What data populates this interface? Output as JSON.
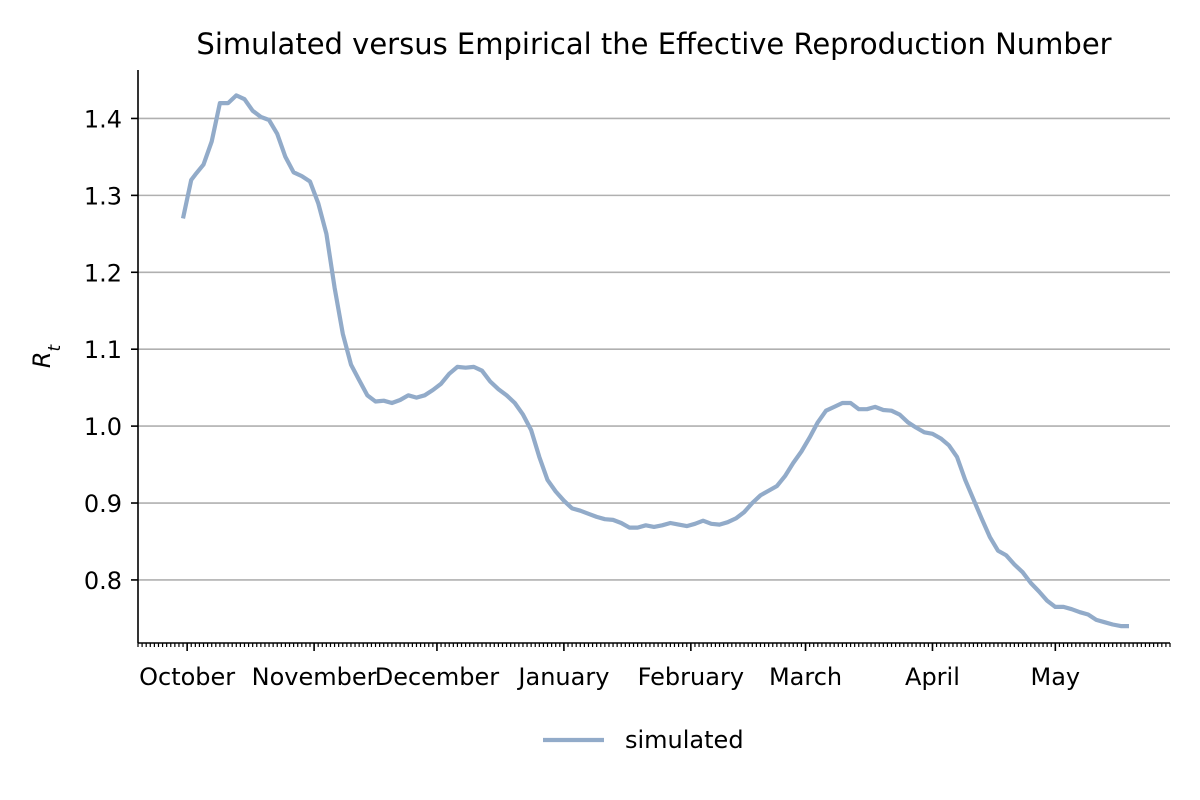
{
  "chart_data": {
    "type": "line",
    "title": "Simulated versus Empirical the Effective Reproduction Number",
    "xlabel": "",
    "ylabel": "R_t",
    "xlim": [
      "2020-09-19",
      "2021-05-29"
    ],
    "ylim": [
      0.718,
      1.463
    ],
    "yticks": [
      0.8,
      0.9,
      1.0,
      1.1,
      1.2,
      1.3,
      1.4
    ],
    "ytick_labels": [
      "0.8",
      "0.9",
      "1.0",
      "1.1",
      "1.2",
      "1.3",
      "1.4"
    ],
    "xticks": [
      {
        "date": "2020-10-01",
        "label": "October"
      },
      {
        "date": "2020-11-01",
        "label": "November"
      },
      {
        "date": "2020-12-01",
        "label": "December"
      },
      {
        "date": "2021-01-01",
        "label": "January"
      },
      {
        "date": "2021-02-01",
        "label": "February"
      },
      {
        "date": "2021-03-01",
        "label": "March"
      },
      {
        "date": "2021-04-01",
        "label": "April"
      },
      {
        "date": "2021-05-01",
        "label": "May"
      }
    ],
    "grid": "y",
    "legend_position": "bottom-center",
    "series": [
      {
        "name": "simulated",
        "color": "#92abc9",
        "x": [
          "2020-09-30",
          "2020-10-01",
          "2020-10-02",
          "2020-10-03",
          "2020-10-05",
          "2020-10-07",
          "2020-10-09",
          "2020-10-11",
          "2020-10-13",
          "2020-10-15",
          "2020-10-17",
          "2020-10-19",
          "2020-10-21",
          "2020-10-23",
          "2020-10-25",
          "2020-10-27",
          "2020-10-29",
          "2020-10-31",
          "2020-11-02",
          "2020-11-04",
          "2020-11-06",
          "2020-11-08",
          "2020-11-10",
          "2020-11-12",
          "2020-11-14",
          "2020-11-16",
          "2020-11-18",
          "2020-11-20",
          "2020-11-22",
          "2020-11-24",
          "2020-11-26",
          "2020-11-28",
          "2020-11-30",
          "2020-12-02",
          "2020-12-04",
          "2020-12-06",
          "2020-12-08",
          "2020-12-10",
          "2020-12-12",
          "2020-12-14",
          "2020-12-16",
          "2020-12-18",
          "2020-12-20",
          "2020-12-22",
          "2020-12-24",
          "2020-12-26",
          "2020-12-28",
          "2020-12-30",
          "2021-01-01",
          "2021-01-03",
          "2021-01-05",
          "2021-01-07",
          "2021-01-09",
          "2021-01-11",
          "2021-01-13",
          "2021-01-15",
          "2021-01-17",
          "2021-01-19",
          "2021-01-21",
          "2021-01-23",
          "2021-01-25",
          "2021-01-27",
          "2021-01-29",
          "2021-01-31",
          "2021-02-02",
          "2021-02-04",
          "2021-02-06",
          "2021-02-08",
          "2021-02-10",
          "2021-02-12",
          "2021-02-14",
          "2021-02-16",
          "2021-02-18",
          "2021-02-20",
          "2021-02-22",
          "2021-02-24",
          "2021-02-26",
          "2021-02-28",
          "2021-03-02",
          "2021-03-04",
          "2021-03-06",
          "2021-03-08",
          "2021-03-10",
          "2021-03-12",
          "2021-03-14",
          "2021-03-16",
          "2021-03-18",
          "2021-03-20",
          "2021-03-22",
          "2021-03-24",
          "2021-03-26",
          "2021-03-28",
          "2021-03-30",
          "2021-04-01",
          "2021-04-03",
          "2021-04-05",
          "2021-04-07",
          "2021-04-09",
          "2021-04-11",
          "2021-04-13",
          "2021-04-15",
          "2021-04-17",
          "2021-04-19",
          "2021-04-21",
          "2021-04-23",
          "2021-04-25",
          "2021-04-27",
          "2021-04-29",
          "2021-05-01",
          "2021-05-03",
          "2021-05-05",
          "2021-05-07",
          "2021-05-09",
          "2021-05-11",
          "2021-05-13",
          "2021-05-15",
          "2021-05-17",
          "2021-05-19"
        ],
        "values": [
          1.27,
          1.295,
          1.32,
          1.327,
          1.34,
          1.37,
          1.42,
          1.42,
          1.43,
          1.425,
          1.41,
          1.402,
          1.398,
          1.38,
          1.35,
          1.33,
          1.325,
          1.318,
          1.29,
          1.25,
          1.18,
          1.12,
          1.08,
          1.06,
          1.04,
          1.032,
          1.033,
          1.03,
          1.034,
          1.04,
          1.037,
          1.04,
          1.047,
          1.055,
          1.068,
          1.077,
          1.076,
          1.077,
          1.072,
          1.058,
          1.048,
          1.04,
          1.03,
          1.015,
          0.995,
          0.96,
          0.93,
          0.915,
          0.903,
          0.893,
          0.89,
          0.886,
          0.882,
          0.879,
          0.878,
          0.874,
          0.868,
          0.868,
          0.871,
          0.869,
          0.871,
          0.874,
          0.872,
          0.87,
          0.873,
          0.877,
          0.873,
          0.872,
          0.875,
          0.88,
          0.888,
          0.9,
          0.91,
          0.916,
          0.922,
          0.935,
          0.952,
          0.967,
          0.985,
          1.005,
          1.02,
          1.025,
          1.03,
          1.03,
          1.022,
          1.022,
          1.025,
          1.021,
          1.02,
          1.015,
          1.005,
          0.998,
          0.992,
          0.99,
          0.984,
          0.975,
          0.96,
          0.93,
          0.905,
          0.88,
          0.856,
          0.838,
          0.832,
          0.82,
          0.81,
          0.796,
          0.785,
          0.773,
          0.765,
          0.765,
          0.762,
          0.758,
          0.755,
          0.748,
          0.745,
          0.742,
          0.74,
          0.74
        ]
      }
    ]
  }
}
